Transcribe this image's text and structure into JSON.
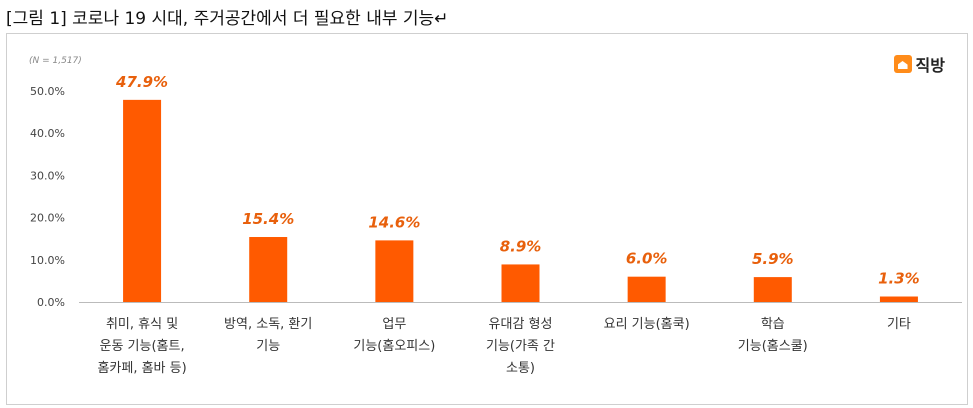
{
  "figure": {
    "title": "[그림 1] 코로나 19 시대, 주거공간에서 더 필요한 내부 기능↵",
    "sample_note": "(N = 1,517)",
    "brand_text": "직방",
    "brand_icon": "house-icon"
  },
  "chart_data": {
    "type": "bar",
    "title": "",
    "xlabel": "",
    "ylabel": "",
    "ylim": [
      0,
      50
    ],
    "yticks": [
      "0.0%",
      "10.0%",
      "20.0%",
      "30.0%",
      "40.0%",
      "50.0%"
    ],
    "grid": false,
    "bar_color": "#ff5a00",
    "label_color": "#e8600c",
    "categories": [
      "취미, 휴식 및\n운동 기능(홈트,\n홈카페, 홈바 등)",
      "방역, 소독, 환기\n기능",
      "업무\n기능(홈오피스)",
      "유대감 형성\n기능(가족 간\n소통)",
      "요리 기능(홈쿡)",
      "학습\n기능(홈스쿨)",
      "기타"
    ],
    "values": [
      47.9,
      15.4,
      14.6,
      8.9,
      6.0,
      5.9,
      1.3
    ],
    "value_labels": [
      "47.9%",
      "15.4%",
      "14.6%",
      "8.9%",
      "6.0%",
      "5.9%",
      "1.3%"
    ]
  }
}
